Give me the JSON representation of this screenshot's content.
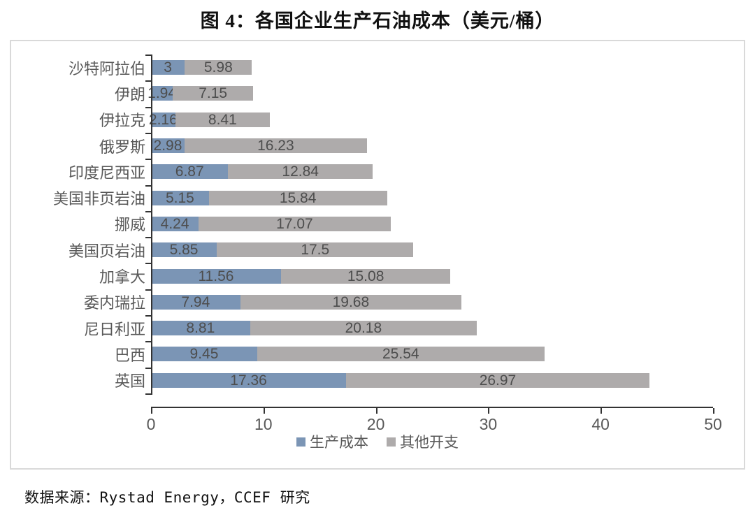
{
  "title": "图 4：各国企业生产石油成本（美元/桶）",
  "source_note": "数据来源：Rystad Energy，CCEF 研究",
  "colors": {
    "production": "#7b95b5",
    "other": "#aeabab",
    "axis": "#333333",
    "category_text": "#595959",
    "value_text": "#4d4d4d",
    "box_border": "#d9d9d9"
  },
  "chart_data": {
    "type": "bar",
    "orientation": "horizontal",
    "stacked": true,
    "title": "图 4：各国企业生产石油成本（美元/桶）",
    "xlabel": "",
    "ylabel": "",
    "xlim": [
      0,
      50
    ],
    "x_ticks": [
      0,
      10,
      20,
      30,
      40,
      50
    ],
    "grid": false,
    "legend_position": "bottom",
    "categories": [
      "沙特阿拉伯",
      "伊朗",
      "伊拉克",
      "俄罗斯",
      "印度尼西亚",
      "美国非页岩油",
      "挪威",
      "美国页岩油",
      "加拿大",
      "委内瑞拉",
      "尼日利亚",
      "巴西",
      "英国"
    ],
    "series": [
      {
        "name": "生产成本",
        "values": [
          3,
          1.94,
          2.16,
          2.98,
          6.87,
          5.15,
          4.24,
          5.85,
          11.56,
          7.94,
          8.81,
          9.45,
          17.36
        ]
      },
      {
        "name": "其他开支",
        "values": [
          5.98,
          7.15,
          8.41,
          16.23,
          12.84,
          15.84,
          17.07,
          17.5,
          15.08,
          19.68,
          20.18,
          25.54,
          26.97
        ]
      }
    ]
  }
}
